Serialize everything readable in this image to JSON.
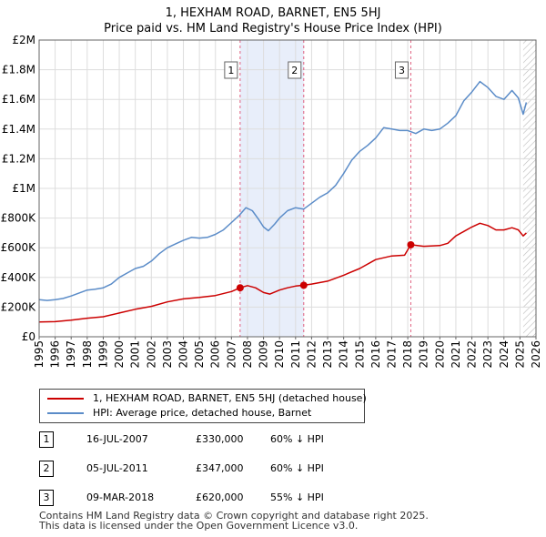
{
  "title": {
    "line1": "1, HEXHAM ROAD, BARNET, EN5 5HJ",
    "line2": "Price paid vs. HM Land Registry's House Price Index (HPI)"
  },
  "legend": {
    "property_label": "1, HEXHAM ROAD, BARNET, EN5 5HJ (detached house)",
    "hpi_label": "HPI: Average price, detached house, Barnet"
  },
  "transactions": [
    {
      "num": "1",
      "date": "16-JUL-2007",
      "price": "£330,000",
      "hpi": "60% ↓ HPI"
    },
    {
      "num": "2",
      "date": "05-JUL-2011",
      "price": "£347,000",
      "hpi": "60% ↓ HPI"
    },
    {
      "num": "3",
      "date": "09-MAR-2018",
      "price": "£620,000",
      "hpi": "55% ↓ HPI"
    }
  ],
  "footer": {
    "line1": "Contains HM Land Registry data © Crown copyright and database right 2025.",
    "line2": "This data is licensed under the Open Government Licence v3.0."
  },
  "colors": {
    "property": "#cc0000",
    "hpi": "#5b8cc8",
    "shade": "#e8eefa",
    "grid": "#dddddd",
    "marker_line": "#e06080"
  },
  "chart_data": {
    "type": "line",
    "xlim": [
      1995,
      2026
    ],
    "ylim": [
      0,
      2000000
    ],
    "x_ticks": [
      1995,
      1996,
      1997,
      1998,
      1999,
      2000,
      2001,
      2002,
      2003,
      2004,
      2005,
      2006,
      2007,
      2008,
      2009,
      2010,
      2011,
      2012,
      2013,
      2014,
      2015,
      2016,
      2017,
      2018,
      2019,
      2020,
      2021,
      2022,
      2023,
      2024,
      2025,
      2026
    ],
    "y_ticks": [
      {
        "value": 0,
        "label": "£0"
      },
      {
        "value": 200000,
        "label": "£200K"
      },
      {
        "value": 400000,
        "label": "£400K"
      },
      {
        "value": 600000,
        "label": "£600K"
      },
      {
        "value": 800000,
        "label": "£800K"
      },
      {
        "value": 1000000,
        "label": "£1M"
      },
      {
        "value": 1200000,
        "label": "£1.2M"
      },
      {
        "value": 1400000,
        "label": "£1.4M"
      },
      {
        "value": 1600000,
        "label": "£1.6M"
      },
      {
        "value": 1800000,
        "label": "£1.8M"
      },
      {
        "value": 2000000,
        "label": "£2M"
      }
    ],
    "shaded_ranges": [
      [
        2007.54,
        2011.51
      ]
    ],
    "hatched_from": 2025.2,
    "sales": [
      {
        "label": "1",
        "x": 2007.54,
        "price": 330000
      },
      {
        "label": "2",
        "x": 2011.51,
        "price": 347000
      },
      {
        "label": "3",
        "x": 2018.19,
        "price": 620000
      }
    ],
    "series": [
      {
        "name": "HPI: Average price, detached house, Barnet",
        "color": "#5b8cc8",
        "points": [
          [
            1995.0,
            250000
          ],
          [
            1995.5,
            245000
          ],
          [
            1996.0,
            250000
          ],
          [
            1996.5,
            258000
          ],
          [
            1997.0,
            275000
          ],
          [
            1997.5,
            295000
          ],
          [
            1998.0,
            315000
          ],
          [
            1998.5,
            320000
          ],
          [
            1999.0,
            330000
          ],
          [
            1999.5,
            355000
          ],
          [
            2000.0,
            400000
          ],
          [
            2000.5,
            430000
          ],
          [
            2001.0,
            460000
          ],
          [
            2001.5,
            475000
          ],
          [
            2002.0,
            510000
          ],
          [
            2002.5,
            560000
          ],
          [
            2003.0,
            600000
          ],
          [
            2003.5,
            625000
          ],
          [
            2004.0,
            650000
          ],
          [
            2004.5,
            670000
          ],
          [
            2005.0,
            665000
          ],
          [
            2005.5,
            670000
          ],
          [
            2006.0,
            690000
          ],
          [
            2006.5,
            720000
          ],
          [
            2007.0,
            770000
          ],
          [
            2007.5,
            820000
          ],
          [
            2007.9,
            870000
          ],
          [
            2008.3,
            850000
          ],
          [
            2008.7,
            790000
          ],
          [
            2009.0,
            740000
          ],
          [
            2009.3,
            715000
          ],
          [
            2009.7,
            760000
          ],
          [
            2010.0,
            800000
          ],
          [
            2010.5,
            850000
          ],
          [
            2011.0,
            870000
          ],
          [
            2011.5,
            860000
          ],
          [
            2012.0,
            900000
          ],
          [
            2012.5,
            940000
          ],
          [
            2013.0,
            970000
          ],
          [
            2013.5,
            1020000
          ],
          [
            2014.0,
            1100000
          ],
          [
            2014.5,
            1190000
          ],
          [
            2015.0,
            1250000
          ],
          [
            2015.5,
            1290000
          ],
          [
            2016.0,
            1340000
          ],
          [
            2016.5,
            1410000
          ],
          [
            2017.0,
            1400000
          ],
          [
            2017.5,
            1390000
          ],
          [
            2018.0,
            1390000
          ],
          [
            2018.5,
            1370000
          ],
          [
            2019.0,
            1400000
          ],
          [
            2019.5,
            1390000
          ],
          [
            2020.0,
            1400000
          ],
          [
            2020.5,
            1440000
          ],
          [
            2021.0,
            1490000
          ],
          [
            2021.5,
            1590000
          ],
          [
            2022.0,
            1650000
          ],
          [
            2022.5,
            1720000
          ],
          [
            2023.0,
            1680000
          ],
          [
            2023.5,
            1620000
          ],
          [
            2024.0,
            1600000
          ],
          [
            2024.5,
            1660000
          ],
          [
            2024.9,
            1610000
          ],
          [
            2025.2,
            1500000
          ],
          [
            2025.4,
            1580000
          ]
        ]
      },
      {
        "name": "1, HEXHAM ROAD, BARNET, EN5 5HJ (detached house)",
        "color": "#cc0000",
        "points": [
          [
            1995.0,
            100000
          ],
          [
            1996.0,
            102000
          ],
          [
            1997.0,
            112000
          ],
          [
            1998.0,
            125000
          ],
          [
            1999.0,
            135000
          ],
          [
            2000.0,
            160000
          ],
          [
            2001.0,
            185000
          ],
          [
            2002.0,
            205000
          ],
          [
            2003.0,
            235000
          ],
          [
            2004.0,
            255000
          ],
          [
            2005.0,
            265000
          ],
          [
            2006.0,
            278000
          ],
          [
            2007.0,
            305000
          ],
          [
            2007.54,
            330000
          ],
          [
            2008.0,
            345000
          ],
          [
            2008.5,
            330000
          ],
          [
            2009.0,
            298000
          ],
          [
            2009.4,
            288000
          ],
          [
            2010.0,
            315000
          ],
          [
            2010.5,
            330000
          ],
          [
            2011.0,
            342000
          ],
          [
            2011.51,
            347000
          ],
          [
            2012.0,
            355000
          ],
          [
            2013.0,
            375000
          ],
          [
            2014.0,
            415000
          ],
          [
            2015.0,
            460000
          ],
          [
            2016.0,
            520000
          ],
          [
            2017.0,
            545000
          ],
          [
            2017.8,
            550000
          ],
          [
            2018.19,
            620000
          ],
          [
            2019.0,
            610000
          ],
          [
            2020.0,
            615000
          ],
          [
            2020.5,
            630000
          ],
          [
            2021.0,
            680000
          ],
          [
            2021.5,
            710000
          ],
          [
            2022.0,
            740000
          ],
          [
            2022.5,
            765000
          ],
          [
            2023.0,
            750000
          ],
          [
            2023.5,
            720000
          ],
          [
            2024.0,
            720000
          ],
          [
            2024.5,
            735000
          ],
          [
            2024.9,
            720000
          ],
          [
            2025.2,
            680000
          ],
          [
            2025.4,
            700000
          ]
        ]
      }
    ]
  }
}
